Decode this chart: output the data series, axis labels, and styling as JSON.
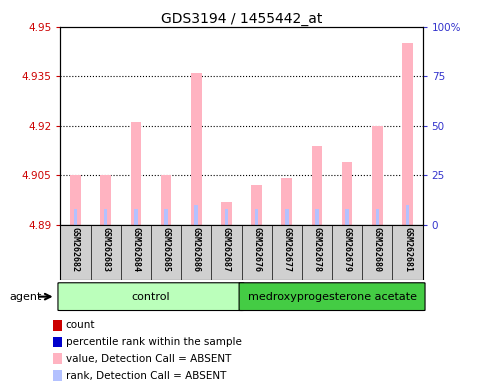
{
  "title": "GDS3194 / 1455442_at",
  "samples": [
    "GSM262682",
    "GSM262683",
    "GSM262684",
    "GSM262685",
    "GSM262686",
    "GSM262687",
    "GSM262676",
    "GSM262677",
    "GSM262678",
    "GSM262679",
    "GSM262680",
    "GSM262681"
  ],
  "values": [
    4.905,
    4.905,
    4.921,
    4.905,
    4.936,
    4.897,
    4.902,
    4.904,
    4.914,
    4.909,
    4.92,
    4.945
  ],
  "ranks": [
    8,
    8,
    8,
    8,
    10,
    8,
    8,
    8,
    8,
    8,
    8,
    10
  ],
  "ylim_left": [
    4.89,
    4.95
  ],
  "ylim_right": [
    0,
    100
  ],
  "yticks_left": [
    4.89,
    4.905,
    4.92,
    4.935,
    4.95
  ],
  "yticks_right": [
    0,
    25,
    50,
    75,
    100
  ],
  "ytick_labels_right": [
    "0",
    "25",
    "50",
    "75",
    "100%"
  ],
  "groups": [
    {
      "label": "control",
      "start": 0,
      "end": 6,
      "color": "#bbffbb"
    },
    {
      "label": "medroxyprogesterone acetate",
      "start": 6,
      "end": 12,
      "color": "#44cc44"
    }
  ],
  "bar_color_value": "#ffb3c1",
  "bar_color_rank": "#b3c1ff",
  "bar_width": 0.35,
  "rank_bar_width": 0.12,
  "grid_color": "black",
  "bg_plot": "white",
  "bg_sample_box": "#d0d0d0",
  "legend_items": [
    {
      "color": "#cc0000",
      "label": "count"
    },
    {
      "color": "#0000cc",
      "label": "percentile rank within the sample"
    },
    {
      "color": "#ffb3c1",
      "label": "value, Detection Call = ABSENT"
    },
    {
      "color": "#b3c1ff",
      "label": "rank, Detection Call = ABSENT"
    }
  ],
  "agent_label": "agent",
  "left_label_color": "#cc0000",
  "right_label_color": "#3333cc",
  "title_fontsize": 10,
  "tick_fontsize": 7.5,
  "sample_fontsize": 6,
  "legend_fontsize": 7.5,
  "group_fontsize": 8
}
